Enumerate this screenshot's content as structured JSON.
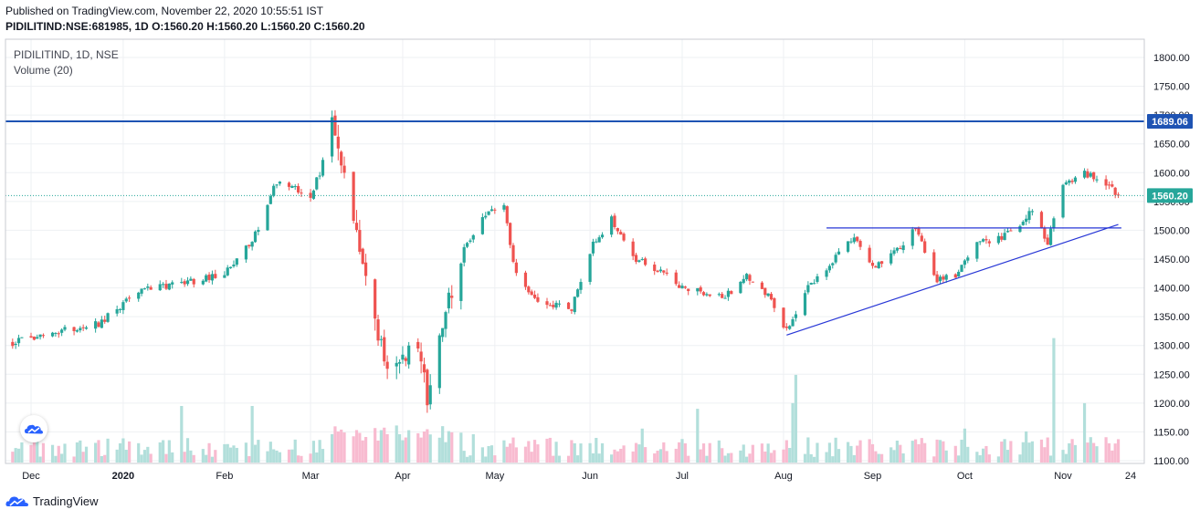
{
  "header": {
    "published": "Published on TradingView.com, November 22, 2020 10:55:51 IST",
    "symbol_line": "PIDILITIND:NSE:681985, 1D",
    "ohlc": "O:1560.20 H:1560.20 L:1560.20 C:1560.20"
  },
  "overlay": {
    "title": "PIDILITIND, 1D, NSE",
    "volume_label": "Volume (20)"
  },
  "footer": {
    "brand": "TradingView"
  },
  "colors": {
    "up": "#26a69a",
    "down": "#ef5350",
    "up_vol": "#b2dfdb",
    "down_vol": "#f8bbd0",
    "resistance": "#1e53b3",
    "trend": "#2736d6",
    "last_price": "#26a69a",
    "grid": "#eef0f3"
  },
  "chart_data": {
    "type": "candlestick",
    "ylim": [
      1100,
      1820
    ],
    "y_ticks": [
      "1800.00",
      "1750.00",
      "1700.00",
      "1650.00",
      "1600.00",
      "1550.00",
      "1500.00",
      "1450.00",
      "1400.00",
      "1350.00",
      "1300.00",
      "1250.00",
      "1200.00",
      "1150.00",
      "1100.00"
    ],
    "x_ticks": [
      "Dec",
      "2020",
      "Feb",
      "Mar",
      "Apr",
      "May",
      "Jun",
      "Jul",
      "Aug",
      "Sep",
      "Oct",
      "Nov",
      "24"
    ],
    "x_range": [
      "2019-11-26",
      "2020-11-24"
    ],
    "price_labels": [
      {
        "label": "1689.06",
        "value": 1689.06,
        "kind": "resistance"
      },
      {
        "label": "1560.20",
        "value": 1560.2,
        "kind": "last"
      }
    ],
    "drawings": [
      {
        "type": "horizontal",
        "value": 1689.06,
        "name": "resistance"
      },
      {
        "type": "segment",
        "from": [
          "2020-08-17",
          1504
        ],
        "to": [
          "2020-11-21",
          1504
        ],
        "name": "neckline"
      },
      {
        "type": "segment",
        "from": [
          "2020-08-04",
          1318
        ],
        "to": [
          "2020-11-20",
          1510
        ],
        "name": "ascending-trendline"
      }
    ],
    "anchors": [
      [
        "2019-11-26",
        1305
      ],
      [
        "2019-12-10",
        1325
      ],
      [
        "2019-12-24",
        1338
      ],
      [
        "2020-01-06",
        1395
      ],
      [
        "2020-01-21",
        1408
      ],
      [
        "2020-02-03",
        1425
      ],
      [
        "2020-02-12",
        1480
      ],
      [
        "2020-02-20",
        1585
      ],
      [
        "2020-03-02",
        1560
      ],
      [
        "2020-03-05",
        1600
      ],
      [
        "2020-03-09",
        1680
      ],
      [
        "2020-03-13",
        1590
      ],
      [
        "2020-03-18",
        1465
      ],
      [
        "2020-03-23",
        1340
      ],
      [
        "2020-03-27",
        1265
      ],
      [
        "2020-04-06",
        1290
      ],
      [
        "2020-04-09",
        1215
      ],
      [
        "2020-04-14",
        1345
      ],
      [
        "2020-04-21",
        1470
      ],
      [
        "2020-04-28",
        1525
      ],
      [
        "2020-05-04",
        1545
      ],
      [
        "2020-05-07",
        1440
      ],
      [
        "2020-05-14",
        1380
      ],
      [
        "2020-05-26",
        1365
      ],
      [
        "2020-06-02",
        1475
      ],
      [
        "2020-06-08",
        1520
      ],
      [
        "2020-06-16",
        1450
      ],
      [
        "2020-06-23",
        1430
      ],
      [
        "2020-07-01",
        1400
      ],
      [
        "2020-07-15",
        1385
      ],
      [
        "2020-07-22",
        1420
      ],
      [
        "2020-07-29",
        1385
      ],
      [
        "2020-08-04",
        1325
      ],
      [
        "2020-08-11",
        1400
      ],
      [
        "2020-08-18",
        1440
      ],
      [
        "2020-08-26",
        1490
      ],
      [
        "2020-09-01",
        1435
      ],
      [
        "2020-09-08",
        1460
      ],
      [
        "2020-09-15",
        1505
      ],
      [
        "2020-09-22",
        1415
      ],
      [
        "2020-09-28",
        1420
      ],
      [
        "2020-10-05",
        1480
      ],
      [
        "2020-10-12",
        1485
      ],
      [
        "2020-10-19",
        1505
      ],
      [
        "2020-10-23",
        1535
      ],
      [
        "2020-10-28",
        1480
      ],
      [
        "2020-11-02",
        1580
      ],
      [
        "2020-11-09",
        1600
      ],
      [
        "2020-11-16",
        1580
      ],
      [
        "2020-11-20",
        1560
      ]
    ],
    "volume_spikes": [
      [
        "2020-01-20",
        1.0
      ],
      [
        "2020-02-12",
        1.0
      ],
      [
        "2020-03-11",
        0.55
      ],
      [
        "2020-04-24",
        0.5
      ],
      [
        "2020-06-18",
        0.6
      ],
      [
        "2020-07-06",
        0.95
      ],
      [
        "2020-08-06",
        1.05
      ],
      [
        "2020-08-07",
        1.55
      ],
      [
        "2020-10-01",
        0.6
      ],
      [
        "2020-10-21",
        0.55
      ],
      [
        "2020-10-30",
        2.2
      ],
      [
        "2020-11-09",
        1.05
      ]
    ]
  }
}
